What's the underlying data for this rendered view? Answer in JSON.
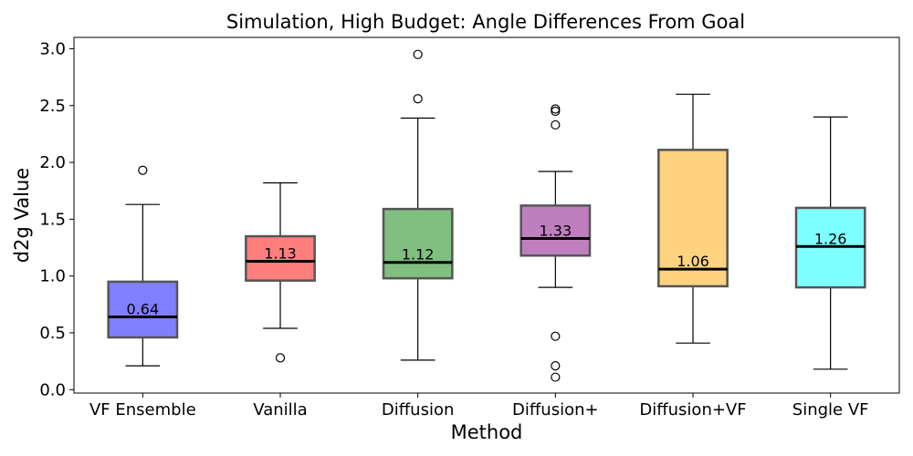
{
  "chart_data": {
    "type": "box",
    "title": "Simulation, High Budget: Angle Differences From Goal",
    "xlabel": "Method",
    "ylabel": "d2g Value",
    "ylim": [
      -0.03,
      3.1
    ],
    "yticks": [
      "0.0",
      "0.5",
      "1.0",
      "1.5",
      "2.0",
      "2.5",
      "3.0"
    ],
    "grid": false,
    "categories": [
      "VF Ensemble",
      "Vanilla",
      "Diffusion",
      "Diffusion+",
      "Diffusion+VF",
      "Single VF"
    ],
    "colors": [
      "#0000ff",
      "#ff0000",
      "#008000",
      "#800080",
      "#ffa500",
      "#00ffff"
    ],
    "boxes": [
      {
        "whisker_low": 0.21,
        "q1": 0.46,
        "median": 0.64,
        "q3": 0.95,
        "whisker_high": 1.63,
        "median_label": "0.64",
        "outliers": [
          1.93
        ]
      },
      {
        "whisker_low": 0.54,
        "q1": 0.96,
        "median": 1.13,
        "q3": 1.35,
        "whisker_high": 1.82,
        "median_label": "1.13",
        "outliers": [
          0.28
        ]
      },
      {
        "whisker_low": 0.26,
        "q1": 0.98,
        "median": 1.12,
        "q3": 1.59,
        "whisker_high": 2.39,
        "median_label": "1.12",
        "outliers": [
          2.56,
          2.95
        ]
      },
      {
        "whisker_low": 0.9,
        "q1": 1.18,
        "median": 1.33,
        "q3": 1.62,
        "whisker_high": 1.92,
        "median_label": "1.33",
        "outliers": [
          0.11,
          0.21,
          0.47,
          2.33,
          2.45,
          2.47
        ]
      },
      {
        "whisker_low": 0.41,
        "q1": 0.91,
        "median": 1.06,
        "q3": 2.11,
        "whisker_high": 2.6,
        "median_label": "1.06",
        "outliers": []
      },
      {
        "whisker_low": 0.18,
        "q1": 0.9,
        "median": 1.26,
        "q3": 1.6,
        "whisker_high": 2.4,
        "median_label": "1.26",
        "outliers": []
      }
    ]
  }
}
